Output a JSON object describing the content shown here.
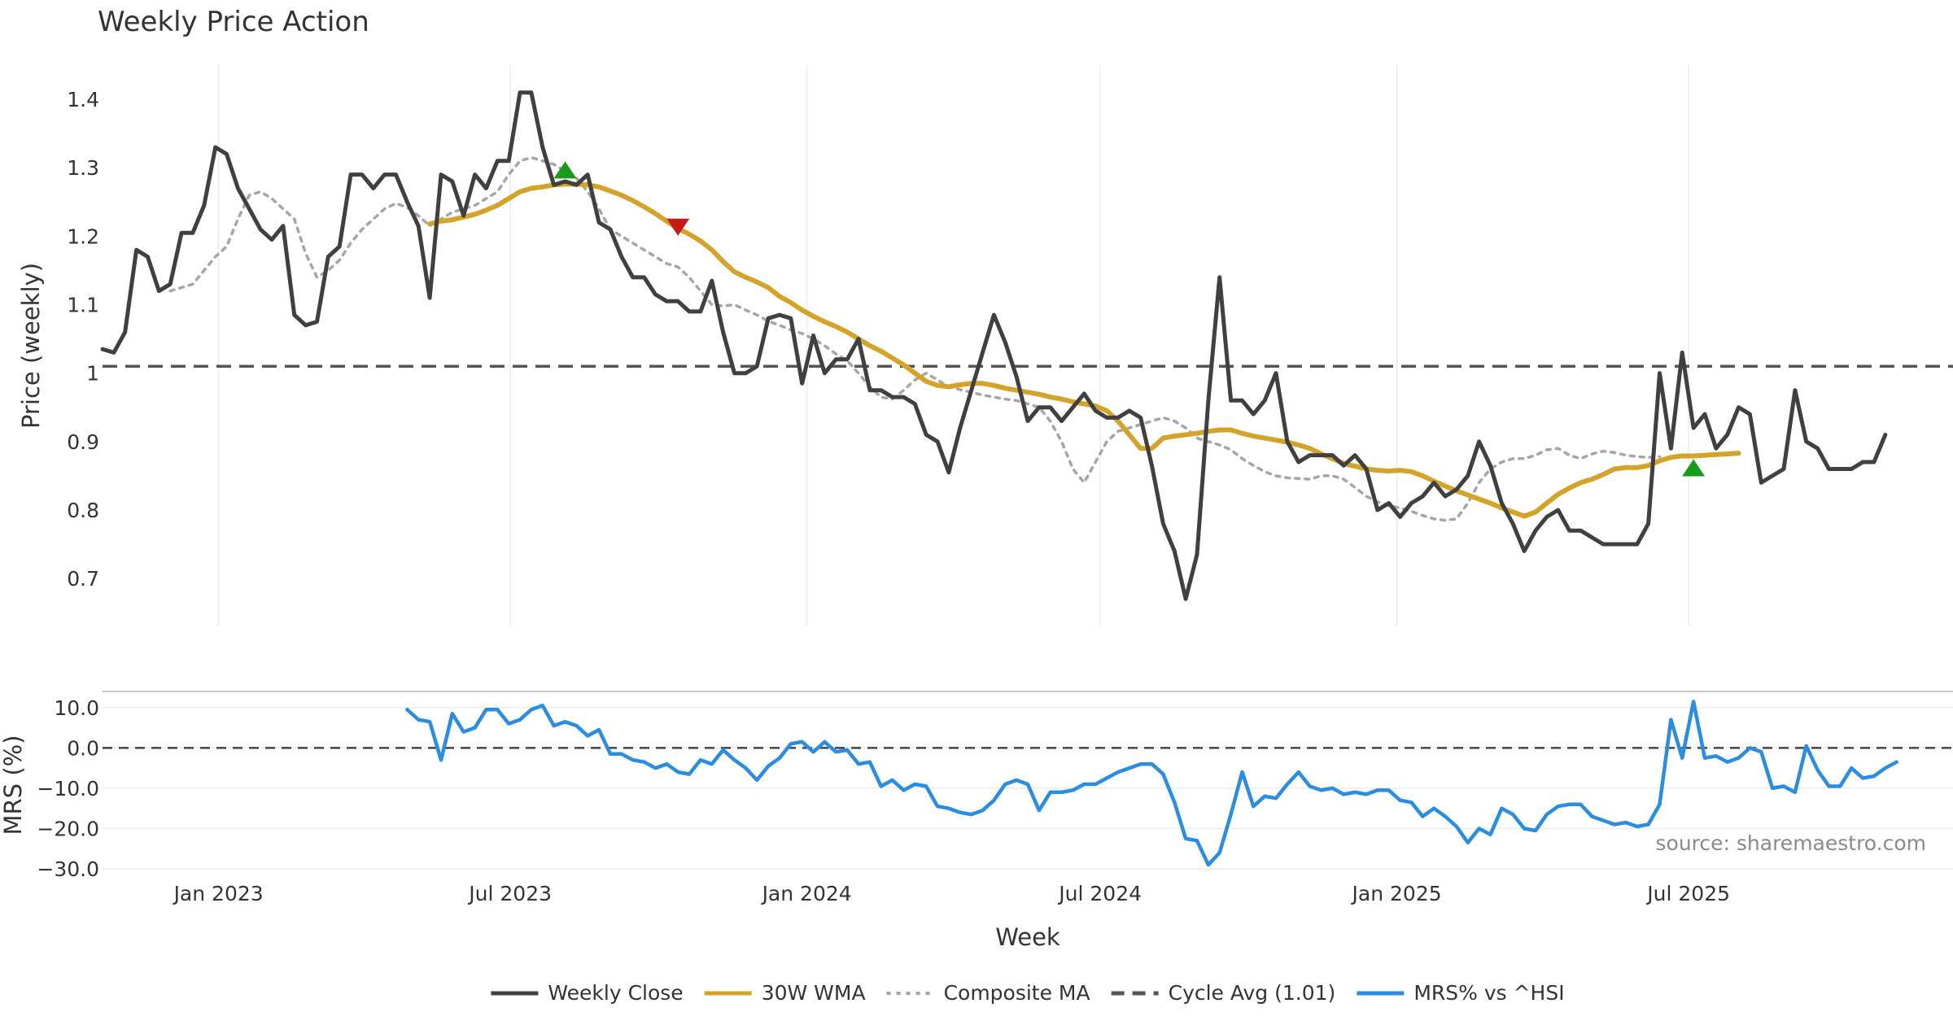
{
  "chart_data": {
    "type": "line",
    "title": "Weekly Price Action",
    "xlabel": "Week",
    "x_ticks": [
      "Jan 2023",
      "Jul 2023",
      "Jan 2024",
      "Jul 2024",
      "Jan 2025",
      "Jul 2025"
    ],
    "panels": [
      {
        "name": "price",
        "ylabel": "Price (weekly)",
        "ylim": [
          0.63,
          1.45
        ],
        "y_ticks": [
          0.7,
          0.8,
          0.9,
          1.0,
          1.1,
          1.2,
          1.3,
          1.4
        ],
        "y_tick_labels": [
          "0.7",
          "0.8",
          "0.9",
          "1",
          "1.1",
          "1.2",
          "1.3",
          "1.4"
        ],
        "grid": "vertical"
      },
      {
        "name": "mrs",
        "ylabel": "MRS (%)",
        "ylim": [
          -31,
          14
        ],
        "y_ticks": [
          10,
          0,
          -10,
          -20,
          -30
        ],
        "y_tick_labels": [
          "10.0",
          "0.0",
          "−10.0",
          "−20.0",
          "−30.0"
        ],
        "grid": "horizontal"
      }
    ],
    "series": [
      {
        "name": "Weekly Close",
        "panel": "price",
        "color": "#404040",
        "style": "solid",
        "x_start": "2022-10-21",
        "step_days": 7,
        "values": [
          1.035,
          1.03,
          1.06,
          1.18,
          1.17,
          1.12,
          1.13,
          1.205,
          1.205,
          1.245,
          1.33,
          1.32,
          1.27,
          1.24,
          1.21,
          1.195,
          1.215,
          1.085,
          1.07,
          1.075,
          1.17,
          1.185,
          1.29,
          1.29,
          1.27,
          1.29,
          1.29,
          1.25,
          1.215,
          1.11,
          1.29,
          1.28,
          1.23,
          1.29,
          1.27,
          1.31,
          1.31,
          1.41,
          1.41,
          1.33,
          1.275,
          1.28,
          1.275,
          1.29,
          1.22,
          1.21,
          1.17,
          1.14,
          1.14,
          1.115,
          1.105,
          1.105,
          1.09,
          1.09,
          1.135,
          1.06,
          1.0,
          1.0,
          1.01,
          1.08,
          1.085,
          1.08,
          0.985,
          1.055,
          1.0,
          1.02,
          1.02,
          1.05,
          0.975,
          0.975,
          0.965,
          0.965,
          0.955,
          0.91,
          0.9,
          0.855,
          0.92,
          0.975,
          1.03,
          1.085,
          1.045,
          0.995,
          0.93,
          0.95,
          0.95,
          0.93,
          0.95,
          0.97,
          0.945,
          0.935,
          0.935,
          0.945,
          0.935,
          0.865,
          0.78,
          0.74,
          0.67,
          0.735,
          0.96,
          1.14,
          0.96,
          0.96,
          0.94,
          0.96,
          1.0,
          0.9,
          0.87,
          0.88,
          0.88,
          0.88,
          0.865,
          0.88,
          0.86,
          0.8,
          0.81,
          0.79,
          0.81,
          0.82,
          0.84,
          0.82,
          0.83,
          0.85,
          0.9,
          0.865,
          0.81,
          0.78,
          0.74,
          0.77,
          0.79,
          0.8,
          0.77,
          0.77,
          0.76,
          0.75,
          0.75,
          0.75,
          0.75,
          0.78,
          1.0,
          0.89,
          1.03,
          0.92,
          0.94,
          0.89,
          0.91,
          0.95,
          0.94,
          0.84,
          0.85,
          0.86,
          0.975,
          0.9,
          0.89,
          0.86,
          0.86,
          0.86,
          0.87,
          0.87,
          0.91
        ]
      },
      {
        "name": "30W WMA",
        "panel": "price",
        "color": "#d4a32a",
        "style": "solid",
        "x_start": "2023-05-12",
        "step_days": 7,
        "values": [
          1.218,
          1.222,
          1.224,
          1.228,
          1.232,
          1.238,
          1.245,
          1.255,
          1.265,
          1.27,
          1.272,
          1.275,
          1.276,
          1.276,
          1.275,
          1.272,
          1.266,
          1.26,
          1.252,
          1.243,
          1.233,
          1.222,
          1.211,
          1.203,
          1.193,
          1.18,
          1.163,
          1.148,
          1.14,
          1.133,
          1.125,
          1.112,
          1.103,
          1.092,
          1.083,
          1.075,
          1.068,
          1.06,
          1.05,
          1.04,
          1.032,
          1.022,
          1.012,
          1.0,
          0.988,
          0.982,
          0.98,
          0.983,
          0.985,
          0.985,
          0.982,
          0.978,
          0.975,
          0.972,
          0.969,
          0.965,
          0.962,
          0.958,
          0.955,
          0.952,
          0.945,
          0.93,
          0.91,
          0.89,
          0.89,
          0.905,
          0.908,
          0.91,
          0.912,
          0.915,
          0.917,
          0.917,
          0.912,
          0.908,
          0.905,
          0.902,
          0.899,
          0.895,
          0.89,
          0.882,
          0.875,
          0.868,
          0.864,
          0.86,
          0.858,
          0.857,
          0.858,
          0.856,
          0.85,
          0.842,
          0.835,
          0.828,
          0.822,
          0.816,
          0.81,
          0.803,
          0.797,
          0.791,
          0.797,
          0.81,
          0.823,
          0.832,
          0.84,
          0.845,
          0.852,
          0.86,
          0.862,
          0.862,
          0.865,
          0.872,
          0.877,
          0.879,
          0.879,
          0.88,
          0.881,
          0.882,
          0.883
        ]
      },
      {
        "name": "Composite MA",
        "panel": "price",
        "color": "#a6a6a6",
        "style": "dotted",
        "x_start": "2022-12-02",
        "step_days": 7,
        "values": [
          1.12,
          1.125,
          1.13,
          1.15,
          1.17,
          1.185,
          1.225,
          1.26,
          1.265,
          1.255,
          1.24,
          1.225,
          1.175,
          1.14,
          1.15,
          1.165,
          1.19,
          1.21,
          1.225,
          1.24,
          1.248,
          1.242,
          1.23,
          1.215,
          1.225,
          1.235,
          1.24,
          1.245,
          1.255,
          1.265,
          1.29,
          1.31,
          1.315,
          1.31,
          1.305,
          1.295,
          1.285,
          1.265,
          1.24,
          1.21,
          1.2,
          1.19,
          1.18,
          1.17,
          1.16,
          1.155,
          1.14,
          1.12,
          1.1,
          1.098,
          1.1,
          1.092,
          1.085,
          1.076,
          1.07,
          1.063,
          1.058,
          1.05,
          1.04,
          1.028,
          1.018,
          1.0,
          0.98,
          0.965,
          0.962,
          0.975,
          0.99,
          1.0,
          0.99,
          0.98,
          0.976,
          0.972,
          0.968,
          0.965,
          0.962,
          0.96,
          0.955,
          0.95,
          0.93,
          0.9,
          0.86,
          0.84,
          0.87,
          0.9,
          0.915,
          0.92,
          0.925,
          0.93,
          0.935,
          0.93,
          0.92,
          0.905,
          0.9,
          0.895,
          0.888,
          0.875,
          0.865,
          0.856,
          0.85,
          0.847,
          0.846,
          0.845,
          0.85,
          0.85,
          0.845,
          0.833,
          0.82,
          0.812,
          0.806,
          0.803,
          0.798,
          0.792,
          0.787,
          0.785,
          0.787,
          0.81,
          0.84,
          0.86,
          0.87,
          0.875,
          0.875,
          0.88,
          0.888,
          0.89,
          0.88,
          0.875,
          0.882,
          0.886,
          0.884,
          0.88,
          0.878,
          0.877,
          0.878
        ]
      },
      {
        "name": "Cycle Avg (1.01)",
        "panel": "price",
        "color": "#555555",
        "style": "dashed",
        "value": 1.01
      },
      {
        "name": "MRS% vs ^HSI",
        "panel": "mrs",
        "color": "#2b8de0",
        "style": "solid",
        "x_start": "2023-04-28",
        "step_days": 7,
        "values": [
          9.5,
          7,
          6.5,
          -3,
          8.5,
          4,
          5,
          9.5,
          9.5,
          6,
          7,
          9.5,
          10.5,
          5.5,
          6.5,
          5.5,
          3,
          4.5,
          -1.5,
          -1.5,
          -3,
          -3.5,
          -5,
          -4,
          -6,
          -6.5,
          -3,
          -4,
          -0.5,
          -3,
          -5,
          -8,
          -4.5,
          -2.5,
          1,
          1.5,
          -1,
          1.5,
          -1,
          -0.5,
          -4,
          -3.5,
          -9.5,
          -8,
          -10.5,
          -9,
          -9.5,
          -14.5,
          -15,
          -16,
          -16.5,
          -15.5,
          -13,
          -9,
          -8,
          -9,
          -15.5,
          -11,
          -11,
          -10.5,
          -9,
          -9,
          -7.5,
          -6,
          -5,
          -4,
          -4,
          -6.5,
          -13.5,
          -22.5,
          -23,
          -29,
          -26,
          -16.5,
          -6,
          -14.5,
          -12,
          -12.5,
          -9,
          -6,
          -9.5,
          -10.5,
          -10,
          -11.5,
          -11,
          -11.5,
          -10.5,
          -10.5,
          -13,
          -13.5,
          -17,
          -15,
          -17,
          -19.5,
          -23.5,
          -20,
          -21.5,
          -15,
          -16.5,
          -20,
          -20.5,
          -16.5,
          -14.5,
          -14,
          -14,
          -17,
          -18,
          -19,
          -18.5,
          -19.5,
          -19,
          -14,
          7,
          -2.5,
          11.5,
          -2.5,
          -2,
          -3.5,
          -2.5,
          0,
          -1,
          -10,
          -9.5,
          -11,
          0.5,
          -5.5,
          -9.5,
          -9.5,
          -5,
          -7.5,
          -7,
          -5,
          -3.5
        ]
      },
      {
        "name": "MRS zero line",
        "panel": "mrs",
        "color": "#444444",
        "style": "dashed",
        "value": 0
      }
    ],
    "markers": [
      {
        "type": "triangle-up",
        "color": "#1a9a1a",
        "x": "2023-08-04",
        "y": 1.295
      },
      {
        "type": "triangle-down",
        "color": "#c41a1a",
        "x": "2023-10-13",
        "y": 1.215
      },
      {
        "type": "triangle-up",
        "color": "#1a9a1a",
        "x": "2025-07-04",
        "y": 0.86
      }
    ],
    "annotation": "source: sharemaestro.com",
    "legend": {
      "placement": "bottom-center",
      "items": [
        {
          "label": "Weekly Close",
          "color": "#404040",
          "style": "solid"
        },
        {
          "label": "30W WMA",
          "color": "#d4a32a",
          "style": "solid"
        },
        {
          "label": "Composite MA",
          "color": "#a6a6a6",
          "style": "dotted"
        },
        {
          "label": "Cycle Avg (1.01)",
          "color": "#555555",
          "style": "dashed"
        },
        {
          "label": "MRS% vs ^HSI",
          "color": "#2b8de0",
          "style": "solid"
        }
      ]
    }
  }
}
